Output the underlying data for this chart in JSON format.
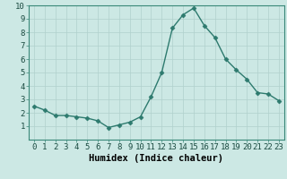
{
  "x": [
    0,
    1,
    2,
    3,
    4,
    5,
    6,
    7,
    8,
    9,
    10,
    11,
    12,
    13,
    14,
    15,
    16,
    17,
    18,
    19,
    20,
    21,
    22,
    23
  ],
  "y": [
    2.5,
    2.2,
    1.8,
    1.8,
    1.7,
    1.6,
    1.4,
    0.9,
    1.1,
    1.3,
    1.7,
    3.2,
    5.0,
    8.3,
    9.3,
    9.8,
    8.5,
    7.6,
    6.0,
    5.2,
    4.5,
    3.5,
    3.4,
    2.9
  ],
  "line_color": "#2d7a6e",
  "marker": "D",
  "marker_size": 2.5,
  "bg_color": "#cce8e4",
  "grid_color": "#b0d0cc",
  "xlabel": "Humidex (Indice chaleur)",
  "ylim": [
    0,
    10
  ],
  "xlim": [
    -0.5,
    23.5
  ],
  "yticks": [
    1,
    2,
    3,
    4,
    5,
    6,
    7,
    8,
    9,
    10
  ],
  "xticks": [
    0,
    1,
    2,
    3,
    4,
    5,
    6,
    7,
    8,
    9,
    10,
    11,
    12,
    13,
    14,
    15,
    16,
    17,
    18,
    19,
    20,
    21,
    22,
    23
  ],
  "tick_label_size": 6.5,
  "xlabel_size": 7.5,
  "line_width": 1.0
}
